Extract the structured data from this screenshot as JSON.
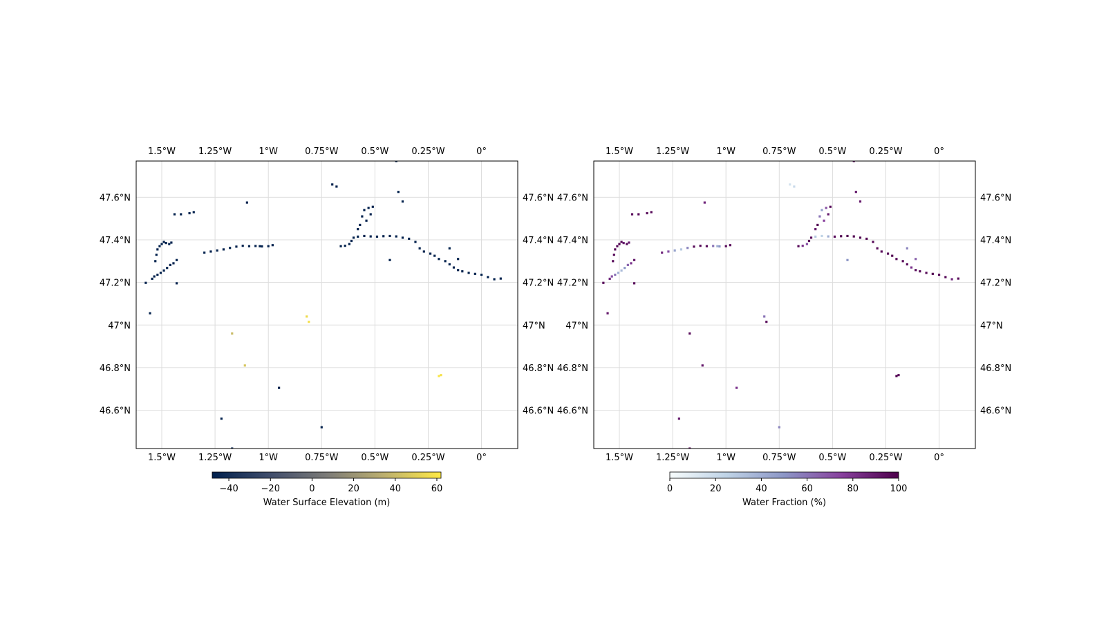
{
  "chart_data": [
    {
      "type": "scatter",
      "xlim": [
        -1.62,
        0.17
      ],
      "ylim": [
        46.42,
        47.77
      ],
      "grid": true,
      "x_ticks": [
        {
          "value": -1.5,
          "label": "1.5°W"
        },
        {
          "value": -1.25,
          "label": "1.25°W"
        },
        {
          "value": -1.0,
          "label": "1°W"
        },
        {
          "value": -0.75,
          "label": "0.75°W"
        },
        {
          "value": -0.5,
          "label": "0.5°W"
        },
        {
          "value": -0.25,
          "label": "0.25°W"
        },
        {
          "value": 0.0,
          "label": "0°"
        }
      ],
      "y_ticks": [
        {
          "value": 46.6,
          "label": "46.6°N"
        },
        {
          "value": 46.8,
          "label": "46.8°N"
        },
        {
          "value": 47.0,
          "label": "47°N"
        },
        {
          "value": 47.2,
          "label": "47.2°N"
        },
        {
          "value": 47.4,
          "label": "47.4°N"
        },
        {
          "value": 47.6,
          "label": "47.6°N"
        }
      ],
      "colorbar": {
        "label": "Water Surface Elevation (m)",
        "colormap": "cividis",
        "range": [
          -48,
          62
        ],
        "ticks": [
          {
            "value": -40,
            "label": "−40"
          },
          {
            "value": -20,
            "label": "−20"
          },
          {
            "value": 0,
            "label": "0"
          },
          {
            "value": 20,
            "label": "20"
          },
          {
            "value": 40,
            "label": "40"
          },
          {
            "value": 60,
            "label": "60"
          }
        ]
      },
      "points": [
        [
          -1.575,
          47.198,
          -45
        ],
        [
          -1.555,
          47.055,
          -45
        ],
        [
          -1.545,
          47.217,
          -45
        ],
        [
          -1.535,
          47.228,
          -45
        ],
        [
          -1.52,
          47.236,
          -45
        ],
        [
          -1.505,
          47.245,
          -45
        ],
        [
          -1.49,
          47.256,
          -45
        ],
        [
          -1.475,
          47.268,
          -45
        ],
        [
          -1.46,
          47.282,
          -45
        ],
        [
          -1.445,
          47.29,
          -45
        ],
        [
          -1.43,
          47.305,
          -45
        ],
        [
          -1.53,
          47.3,
          -45
        ],
        [
          -1.525,
          47.33,
          -45
        ],
        [
          -1.52,
          47.355,
          -45
        ],
        [
          -1.51,
          47.37,
          -45
        ],
        [
          -1.5,
          47.38,
          -45
        ],
        [
          -1.49,
          47.39,
          -45
        ],
        [
          -1.48,
          47.385,
          -45
        ],
        [
          -1.465,
          47.38,
          -45
        ],
        [
          -1.455,
          47.387,
          -45
        ],
        [
          -1.43,
          47.196,
          -45
        ],
        [
          -1.44,
          47.52,
          -45
        ],
        [
          -1.41,
          47.52,
          -45
        ],
        [
          -1.37,
          47.525,
          -45
        ],
        [
          -1.35,
          47.53,
          -45
        ],
        [
          -1.3,
          47.34,
          -45
        ],
        [
          -1.27,
          47.345,
          -45
        ],
        [
          -1.24,
          47.35,
          -45
        ],
        [
          -1.21,
          47.355,
          -45
        ],
        [
          -1.18,
          47.362,
          -45
        ],
        [
          -1.15,
          47.368,
          -45
        ],
        [
          -1.12,
          47.372,
          -45
        ],
        [
          -1.09,
          47.37,
          -45
        ],
        [
          -1.06,
          47.371,
          -45
        ],
        [
          -1.03,
          47.369,
          -45
        ],
        [
          -1.0,
          47.37,
          -45
        ],
        [
          -0.98,
          47.375,
          -45
        ],
        [
          -1.1,
          47.575,
          -45
        ],
        [
          -1.04,
          47.37,
          -45
        ],
        [
          -1.22,
          46.56,
          -45
        ],
        [
          -1.17,
          46.96,
          40
        ],
        [
          -1.11,
          46.81,
          45
        ],
        [
          -0.95,
          46.705,
          -45
        ],
        [
          -0.82,
          47.04,
          55
        ],
        [
          -0.81,
          47.015,
          58
        ],
        [
          -0.75,
          46.52,
          -45
        ],
        [
          -0.7,
          47.66,
          -45
        ],
        [
          -0.68,
          47.65,
          -45
        ],
        [
          -0.66,
          47.37,
          -45
        ],
        [
          -0.64,
          47.372,
          -45
        ],
        [
          -0.62,
          47.38,
          -45
        ],
        [
          -0.61,
          47.395,
          -45
        ],
        [
          -0.6,
          47.41,
          -45
        ],
        [
          -0.58,
          47.45,
          -45
        ],
        [
          -0.57,
          47.47,
          -45
        ],
        [
          -0.56,
          47.51,
          -45
        ],
        [
          -0.55,
          47.54,
          -45
        ],
        [
          -0.53,
          47.55,
          -45
        ],
        [
          -0.51,
          47.555,
          -45
        ],
        [
          -0.54,
          47.49,
          -45
        ],
        [
          -0.52,
          47.52,
          -45
        ],
        [
          -0.58,
          47.415,
          -45
        ],
        [
          -0.55,
          47.418,
          -45
        ],
        [
          -0.52,
          47.416,
          -45
        ],
        [
          -0.49,
          47.415,
          -45
        ],
        [
          -0.46,
          47.417,
          -45
        ],
        [
          -0.43,
          47.418,
          -45
        ],
        [
          -0.4,
          47.416,
          -45
        ],
        [
          -0.37,
          47.41,
          -45
        ],
        [
          -0.34,
          47.405,
          -45
        ],
        [
          -0.31,
          47.39,
          -45
        ],
        [
          -0.29,
          47.36,
          -45
        ],
        [
          -0.27,
          47.345,
          -45
        ],
        [
          -0.24,
          47.335,
          -45
        ],
        [
          -0.22,
          47.325,
          -45
        ],
        [
          -0.2,
          47.31,
          -45
        ],
        [
          -0.17,
          47.3,
          -45
        ],
        [
          -0.15,
          47.285,
          -45
        ],
        [
          -0.13,
          47.27,
          -45
        ],
        [
          -0.11,
          47.258,
          -45
        ],
        [
          -0.09,
          47.252,
          -45
        ],
        [
          -0.06,
          47.245,
          -45
        ],
        [
          -0.03,
          47.24,
          -45
        ],
        [
          0.0,
          47.236,
          -45
        ],
        [
          0.03,
          47.225,
          -45
        ],
        [
          0.06,
          47.215,
          -45
        ],
        [
          0.09,
          47.218,
          -45
        ],
        [
          -0.15,
          47.36,
          -45
        ],
        [
          -0.11,
          47.31,
          -45
        ],
        [
          -0.43,
          47.305,
          -45
        ],
        [
          -0.4,
          47.77,
          -45
        ],
        [
          -0.39,
          47.625,
          -45
        ],
        [
          -0.37,
          47.58,
          -45
        ],
        [
          -0.2,
          46.76,
          60
        ],
        [
          -0.19,
          46.765,
          58
        ],
        [
          -1.17,
          46.42,
          -45
        ]
      ]
    },
    {
      "type": "scatter",
      "xlim": [
        -1.62,
        0.17
      ],
      "ylim": [
        46.42,
        47.77
      ],
      "grid": true,
      "x_ticks": [
        {
          "value": -1.5,
          "label": "1.5°W"
        },
        {
          "value": -1.25,
          "label": "1.25°W"
        },
        {
          "value": -1.0,
          "label": "1°W"
        },
        {
          "value": -0.75,
          "label": "0.75°W"
        },
        {
          "value": -0.5,
          "label": "0.5°W"
        },
        {
          "value": -0.25,
          "label": "0.25°W"
        },
        {
          "value": 0.0,
          "label": "0°"
        }
      ],
      "y_ticks": [
        {
          "value": 46.6,
          "label": "46.6°N"
        },
        {
          "value": 46.8,
          "label": "46.8°N"
        },
        {
          "value": 47.0,
          "label": "47°N"
        },
        {
          "value": 47.2,
          "label": "47.2°N"
        },
        {
          "value": 47.4,
          "label": "47.4°N"
        },
        {
          "value": 47.6,
          "label": "47.6°N"
        }
      ],
      "colorbar": {
        "label": "Water Fraction (%)",
        "colormap": "BuPu",
        "range": [
          0,
          100
        ],
        "ticks": [
          {
            "value": 0,
            "label": "0"
          },
          {
            "value": 20,
            "label": "20"
          },
          {
            "value": 40,
            "label": "40"
          },
          {
            "value": 60,
            "label": "60"
          },
          {
            "value": 80,
            "label": "80"
          },
          {
            "value": 100,
            "label": "100"
          }
        ]
      },
      "points": [
        [
          -1.575,
          47.198,
          95
        ],
        [
          -1.555,
          47.055,
          90
        ],
        [
          -1.545,
          47.217,
          85
        ],
        [
          -1.535,
          47.228,
          70
        ],
        [
          -1.52,
          47.236,
          60
        ],
        [
          -1.505,
          47.245,
          40
        ],
        [
          -1.49,
          47.256,
          35
        ],
        [
          -1.475,
          47.268,
          50
        ],
        [
          -1.46,
          47.282,
          65
        ],
        [
          -1.445,
          47.29,
          80
        ],
        [
          -1.43,
          47.305,
          90
        ],
        [
          -1.53,
          47.3,
          95
        ],
        [
          -1.525,
          47.33,
          95
        ],
        [
          -1.52,
          47.355,
          95
        ],
        [
          -1.51,
          47.37,
          95
        ],
        [
          -1.5,
          47.38,
          98
        ],
        [
          -1.49,
          47.39,
          95
        ],
        [
          -1.48,
          47.385,
          90
        ],
        [
          -1.465,
          47.38,
          95
        ],
        [
          -1.455,
          47.387,
          88
        ],
        [
          -1.43,
          47.196,
          95
        ],
        [
          -1.44,
          47.52,
          95
        ],
        [
          -1.41,
          47.52,
          95
        ],
        [
          -1.37,
          47.525,
          95
        ],
        [
          -1.35,
          47.53,
          95
        ],
        [
          -1.3,
          47.34,
          85
        ],
        [
          -1.27,
          47.345,
          70
        ],
        [
          -1.24,
          47.35,
          45
        ],
        [
          -1.21,
          47.355,
          30
        ],
        [
          -1.18,
          47.362,
          55
        ],
        [
          -1.15,
          47.368,
          95
        ],
        [
          -1.12,
          47.372,
          95
        ],
        [
          -1.09,
          47.37,
          95
        ],
        [
          -1.06,
          47.371,
          60
        ],
        [
          -1.03,
          47.369,
          50
        ],
        [
          -1.0,
          47.37,
          95
        ],
        [
          -0.98,
          47.375,
          95
        ],
        [
          -1.1,
          47.575,
          85
        ],
        [
          -1.04,
          47.37,
          40
        ],
        [
          -1.22,
          46.56,
          90
        ],
        [
          -1.17,
          46.96,
          95
        ],
        [
          -1.11,
          46.81,
          90
        ],
        [
          -0.95,
          46.705,
          80
        ],
        [
          -0.82,
          47.04,
          60
        ],
        [
          -0.81,
          47.015,
          95
        ],
        [
          -0.75,
          46.52,
          55
        ],
        [
          -0.7,
          47.66,
          15
        ],
        [
          -0.68,
          47.65,
          20
        ],
        [
          -0.66,
          47.37,
          95
        ],
        [
          -0.64,
          47.372,
          80
        ],
        [
          -0.62,
          47.38,
          70
        ],
        [
          -0.61,
          47.395,
          95
        ],
        [
          -0.6,
          47.41,
          95
        ],
        [
          -0.58,
          47.45,
          90
        ],
        [
          -0.57,
          47.47,
          98
        ],
        [
          -0.56,
          47.51,
          60
        ],
        [
          -0.55,
          47.54,
          45
        ],
        [
          -0.53,
          47.55,
          70
        ],
        [
          -0.51,
          47.555,
          95
        ],
        [
          -0.54,
          47.49,
          75
        ],
        [
          -0.52,
          47.52,
          90
        ],
        [
          -0.58,
          47.415,
          30
        ],
        [
          -0.55,
          47.418,
          25
        ],
        [
          -0.52,
          47.416,
          40
        ],
        [
          -0.49,
          47.415,
          95
        ],
        [
          -0.46,
          47.417,
          98
        ],
        [
          -0.43,
          47.418,
          98
        ],
        [
          -0.4,
          47.416,
          98
        ],
        [
          -0.37,
          47.41,
          98
        ],
        [
          -0.34,
          47.405,
          98
        ],
        [
          -0.31,
          47.39,
          95
        ],
        [
          -0.29,
          47.36,
          95
        ],
        [
          -0.27,
          47.345,
          95
        ],
        [
          -0.24,
          47.335,
          95
        ],
        [
          -0.22,
          47.325,
          98
        ],
        [
          -0.2,
          47.31,
          95
        ],
        [
          -0.17,
          47.3,
          95
        ],
        [
          -0.15,
          47.285,
          95
        ],
        [
          -0.13,
          47.27,
          80
        ],
        [
          -0.11,
          47.258,
          95
        ],
        [
          -0.09,
          47.252,
          95
        ],
        [
          -0.06,
          47.245,
          95
        ],
        [
          -0.03,
          47.24,
          98
        ],
        [
          0.0,
          47.236,
          95
        ],
        [
          0.03,
          47.225,
          95
        ],
        [
          0.06,
          47.215,
          85
        ],
        [
          0.09,
          47.218,
          95
        ],
        [
          -0.15,
          47.36,
          55
        ],
        [
          -0.11,
          47.31,
          65
        ],
        [
          -0.43,
          47.305,
          50
        ],
        [
          -0.4,
          47.77,
          95
        ],
        [
          -0.39,
          47.625,
          90
        ],
        [
          -0.37,
          47.58,
          90
        ],
        [
          -0.2,
          46.76,
          98
        ],
        [
          -0.19,
          46.765,
          95
        ],
        [
          -1.17,
          46.42,
          95
        ]
      ]
    }
  ]
}
